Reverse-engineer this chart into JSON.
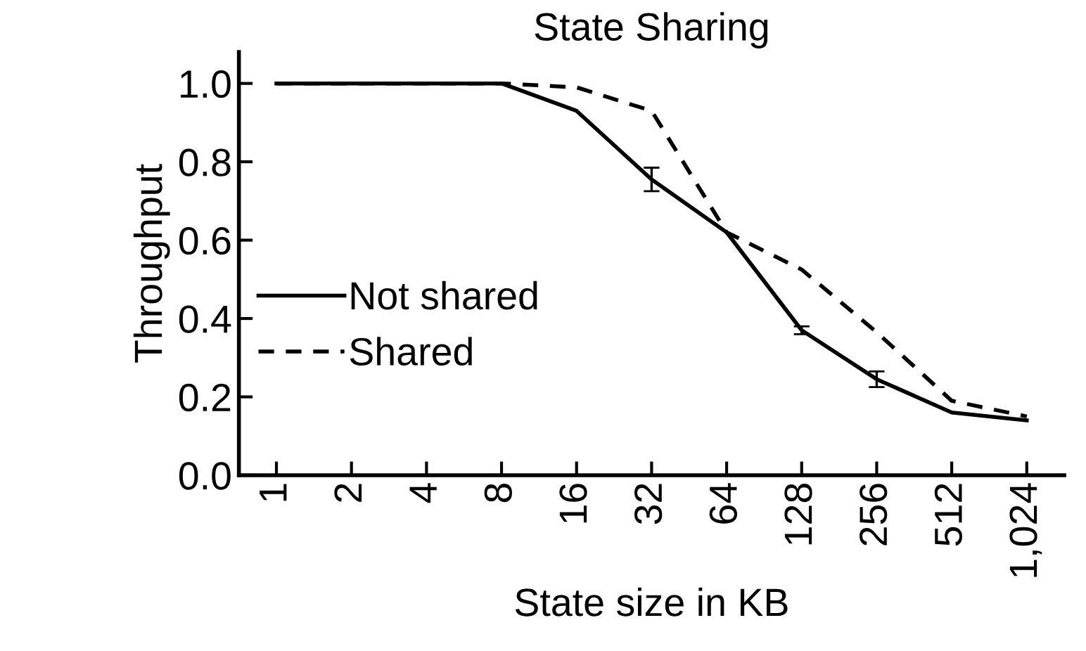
{
  "chart_data": {
    "type": "line",
    "title": "State Sharing",
    "xlabel": "State size in KB",
    "ylabel": "Throughput",
    "categories": [
      "1",
      "2",
      "4",
      "8",
      "16",
      "32",
      "64",
      "128",
      "256",
      "512",
      "1,024"
    ],
    "series": [
      {
        "name": "Not shared",
        "color": "#000000",
        "line_style": "solid",
        "values": [
          1.0,
          1.0,
          1.0,
          1.0,
          0.93,
          0.755,
          0.62,
          0.37,
          0.245,
          0.16,
          0.14
        ],
        "errors": [
          null,
          null,
          null,
          null,
          null,
          0.03,
          null,
          0.01,
          0.02,
          null,
          null
        ]
      },
      {
        "name": "Shared",
        "color": "#000000",
        "line_style": "dashed",
        "values": [
          1.0,
          1.0,
          1.0,
          1.0,
          0.99,
          0.93,
          0.62,
          0.525,
          0.365,
          0.19,
          0.15
        ]
      }
    ],
    "ylim": [
      0,
      1.08
    ],
    "yticks": [
      {
        "value": 0,
        "label": "0.0"
      },
      {
        "value": 0.2,
        "label": "0.2"
      },
      {
        "value": 0.4,
        "label": "0.4"
      },
      {
        "value": 0.6,
        "label": "0.6"
      },
      {
        "value": 0.8,
        "label": "0.8"
      },
      {
        "value": 1.0,
        "label": "1.0"
      }
    ],
    "grid": false,
    "legend": "left",
    "marker": "none"
  }
}
